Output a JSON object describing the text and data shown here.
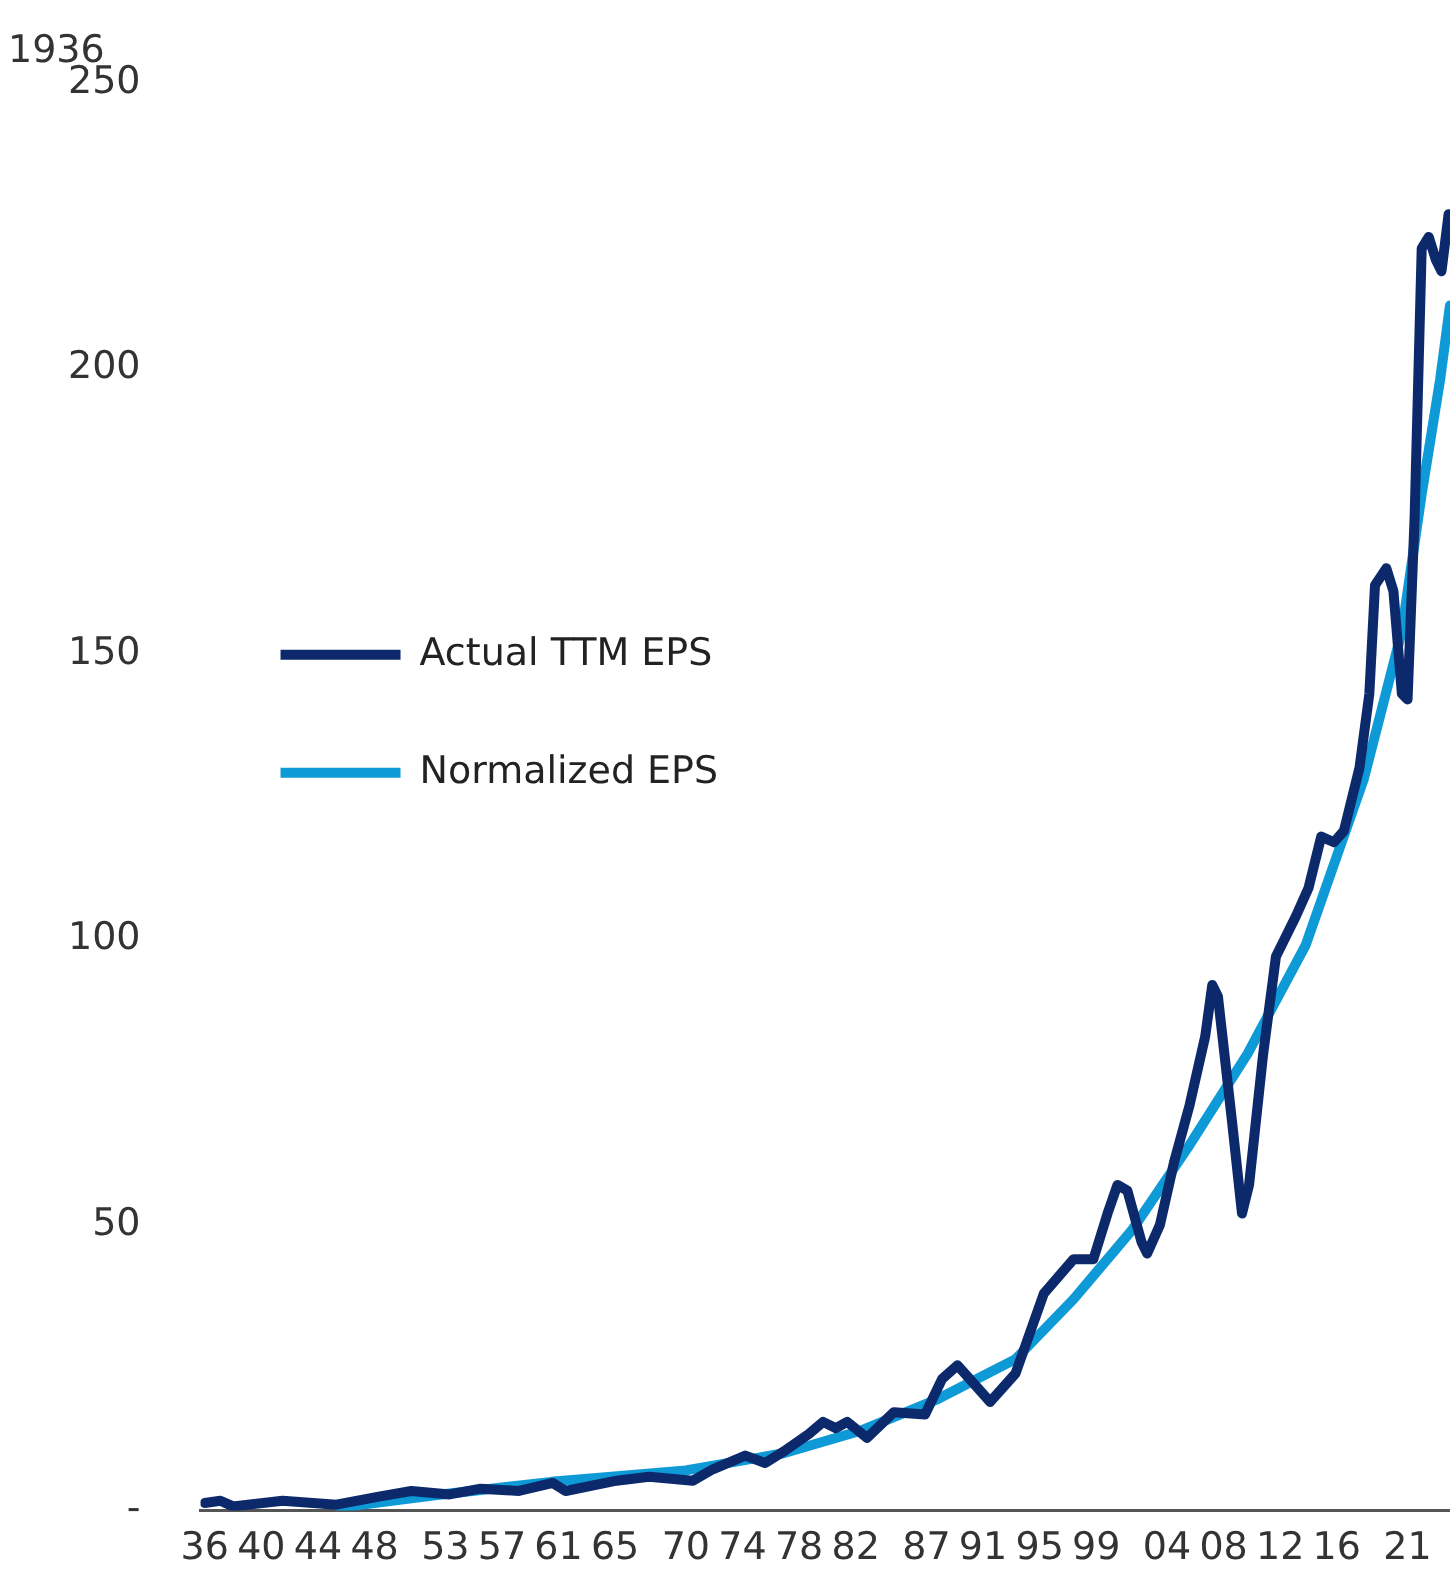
{
  "chart_data": {
    "type": "line",
    "title": "1936",
    "xlim": [
      1935.7,
      2024
    ],
    "xticks": [
      {
        "value": 1936,
        "label": "36"
      },
      {
        "value": 1940,
        "label": "40"
      },
      {
        "value": 1944,
        "label": "44"
      },
      {
        "value": 1948,
        "label": "48"
      },
      {
        "value": 1953,
        "label": "53"
      },
      {
        "value": 1957,
        "label": "57"
      },
      {
        "value": 1961,
        "label": "61"
      },
      {
        "value": 1965,
        "label": "65"
      },
      {
        "value": 1970,
        "label": "70"
      },
      {
        "value": 1974,
        "label": "74"
      },
      {
        "value": 1978,
        "label": "78"
      },
      {
        "value": 1982,
        "label": "82"
      },
      {
        "value": 1987,
        "label": "87"
      },
      {
        "value": 1991,
        "label": "91"
      },
      {
        "value": 1995,
        "label": "95"
      },
      {
        "value": 1999,
        "label": "99"
      },
      {
        "value": 2004,
        "label": "04"
      },
      {
        "value": 2008,
        "label": "08"
      },
      {
        "value": 2012,
        "label": "12"
      },
      {
        "value": 2016,
        "label": "16"
      },
      {
        "value": 2021,
        "label": "21"
      }
    ],
    "ylim": [
      0,
      250
    ],
    "yticks": [
      {
        "value": 0,
        "label": "-"
      },
      50,
      100,
      150,
      200,
      250
    ],
    "grid": false,
    "legend": "top",
    "series": [
      {
        "name": "Actual TTM EPS",
        "color": "#0c2a6b",
        "x": [
          1936.0,
          1937.1,
          1938.0,
          1941.5,
          1945.3,
          1948.3,
          1950.6,
          1953.3,
          1955.5,
          1958.2,
          1960.6,
          1961.5,
          1965.1,
          1967.4,
          1970.5,
          1971.9,
          1974.2,
          1975.6,
          1976.9,
          1978.7,
          1979.7,
          1980.6,
          1981.4,
          1982.8,
          1984.7,
          1986.9,
          1988.1,
          1989.2,
          1991.5,
          1993.3,
          1995.3,
          1997.4,
          1998.8,
          1999.8,
          2000.5,
          2001.2,
          2002.2,
          2002.6,
          2003.5,
          2004.5,
          2005.6,
          2006.7,
          2007.2,
          2007.6,
          2008.6,
          2009.3,
          2009.8,
          2010.8,
          2011.7,
          2013.1,
          2014.0,
          2014.9,
          2015.8,
          2016.5,
          2017.6,
          2018.3,
          2018.7,
          2019.5,
          2020.0,
          2020.6,
          2021.0,
          2021.5,
          2022.0,
          2022.5,
          2023.0,
          2023.4,
          2023.9
        ],
        "values": [
          1.3,
          1.7,
          0.7,
          1.7,
          1.0,
          2.4,
          3.4,
          2.8,
          3.8,
          3.4,
          4.8,
          3.4,
          5.2,
          5.9,
          5.2,
          7.2,
          9.6,
          8.3,
          10.3,
          13.4,
          15.5,
          14.4,
          15.5,
          12.7,
          17.2,
          16.8,
          23,
          25.4,
          19,
          24,
          38,
          44,
          44,
          52,
          57,
          56,
          47,
          45,
          50,
          61,
          71,
          83,
          92,
          90,
          68,
          52,
          57,
          80,
          97,
          104,
          109,
          118,
          117,
          119,
          130,
          143,
          162,
          165,
          161,
          143,
          142,
          174,
          221,
          223,
          219,
          217,
          227
        ]
      },
      {
        "name": "Normalized EPS",
        "color": "#0e9ad7",
        "x": [
          1945.5,
          1952.4,
          1960.5,
          1970.0,
          1976.9,
          1982.4,
          1987.8,
          1993.3,
          1997.4,
          2001.5,
          2005.6,
          2009.7,
          2013.8,
          2017.9,
          2020.6,
          2022.0,
          2023.3,
          2024.0
        ],
        "values": [
          0.5,
          2.7,
          5,
          7,
          10,
          14,
          19.5,
          26.5,
          37,
          49,
          64,
          80,
          99,
          128,
          154,
          178,
          198,
          211
        ]
      }
    ]
  }
}
